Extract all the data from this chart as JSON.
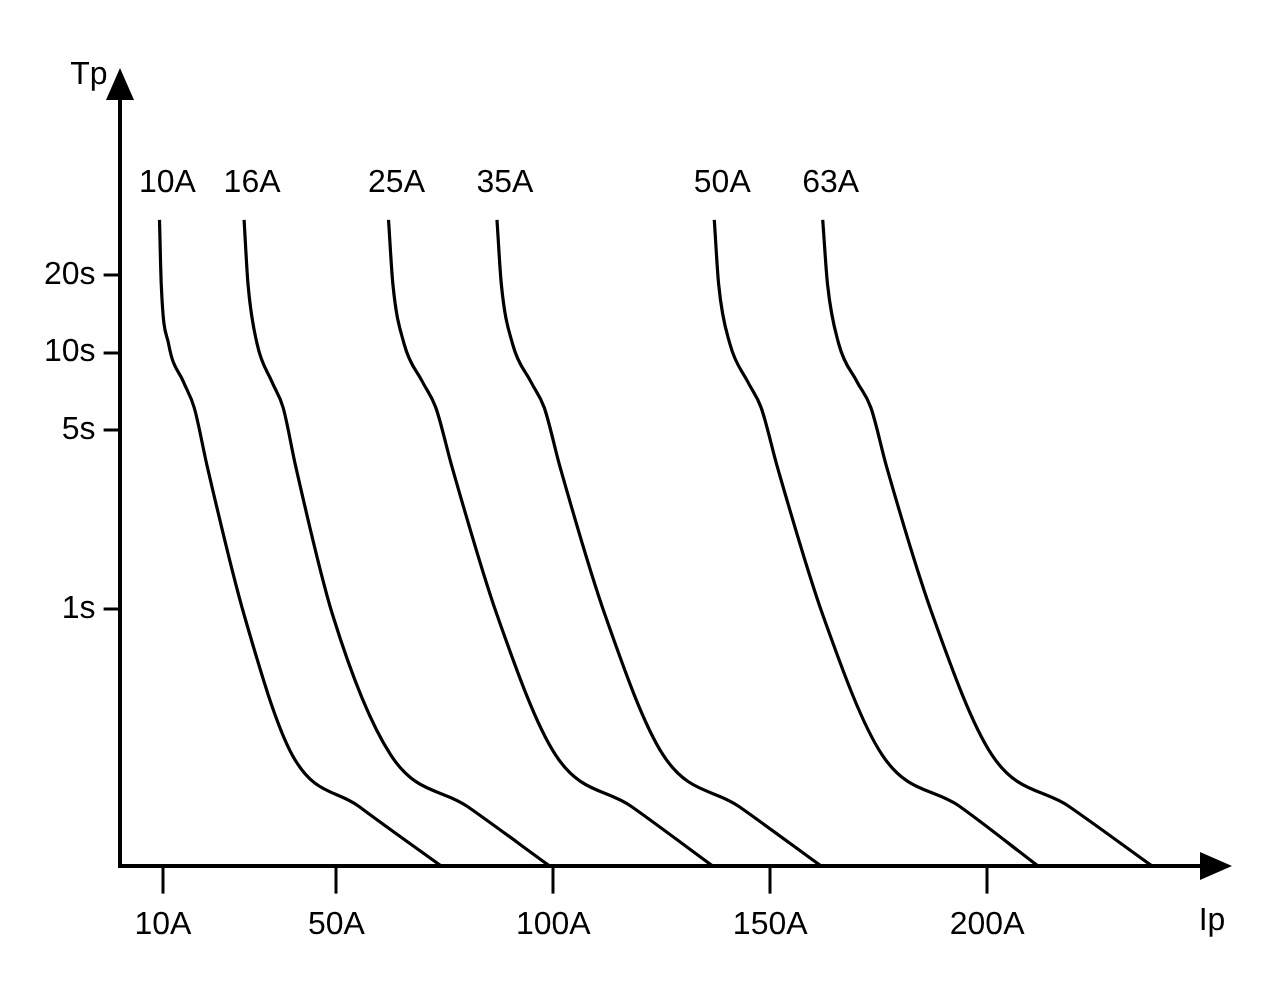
{
  "chart_data": {
    "type": "line",
    "xlabel": "Ip",
    "ylabel": "Tp",
    "xlim": [
      0,
      250
    ],
    "xticks": [
      {
        "value": 10,
        "label": "10A"
      },
      {
        "value": 50,
        "label": "50A"
      },
      {
        "value": 100,
        "label": "100A"
      },
      {
        "value": 150,
        "label": "150A"
      },
      {
        "value": 200,
        "label": "200A"
      }
    ],
    "ylim": [
      0.1,
      100
    ],
    "log": "y",
    "yticks": [
      {
        "value": 1,
        "label": "1s"
      },
      {
        "value": 5,
        "label": "5s"
      },
      {
        "value": 10,
        "label": "10s"
      },
      {
        "value": 20,
        "label": "20s"
      }
    ],
    "grid": false,
    "legend": false,
    "marker": "none",
    "line_style": "solid",
    "series": [
      {
        "name": "10A",
        "color": "#000000",
        "x": [
          9.2,
          9.6,
          11.3,
          14.7,
          17.2,
          20.2,
          28.7,
          39.8,
          55.2,
          74.0
        ],
        "values": [
          32.9,
          18.5,
          10.8,
          7.7,
          6.1,
          3.6,
          0.95,
          0.27,
          0.17,
          0.1
        ]
      },
      {
        "name": "16A",
        "color": "#000000",
        "x": [
          28.7,
          29.6,
          31.7,
          35.1,
          37.7,
          40.6,
          49.1,
          62.5,
          80.2,
          99.0
        ],
        "values": [
          32.9,
          18.5,
          10.8,
          7.7,
          6.1,
          3.6,
          0.95,
          0.27,
          0.17,
          0.1
        ]
      },
      {
        "name": "25A",
        "color": "#000000",
        "x": [
          62.0,
          63.0,
          65.6,
          69.8,
          72.9,
          76.6,
          87.0,
          100.5,
          118.0,
          136.6
        ],
        "values": [
          32.9,
          18.5,
          10.8,
          7.7,
          6.1,
          3.6,
          0.95,
          0.27,
          0.17,
          0.1
        ]
      },
      {
        "name": "35A",
        "color": "#000000",
        "x": [
          87.0,
          88.0,
          90.6,
          94.8,
          97.9,
          101.5,
          111.9,
          125.3,
          142.8,
          161.6
        ],
        "values": [
          32.9,
          18.5,
          10.8,
          7.7,
          6.1,
          3.6,
          0.95,
          0.27,
          0.17,
          0.1
        ]
      },
      {
        "name": "50A",
        "color": "#000000",
        "x": [
          137.1,
          138.1,
          140.7,
          144.8,
          147.9,
          151.6,
          162.1,
          175.8,
          193.7,
          211.6
        ],
        "values": [
          32.9,
          18.5,
          10.8,
          7.7,
          6.1,
          3.6,
          0.95,
          0.27,
          0.17,
          0.1
        ]
      },
      {
        "name": "63A",
        "color": "#000000",
        "x": [
          162.1,
          163.2,
          165.8,
          170.0,
          173.2,
          176.8,
          187.4,
          201.1,
          218.9,
          237.9
        ],
        "values": [
          32.9,
          18.5,
          10.8,
          7.7,
          6.1,
          3.6,
          0.95,
          0.27,
          0.17,
          0.1
        ]
      }
    ]
  }
}
